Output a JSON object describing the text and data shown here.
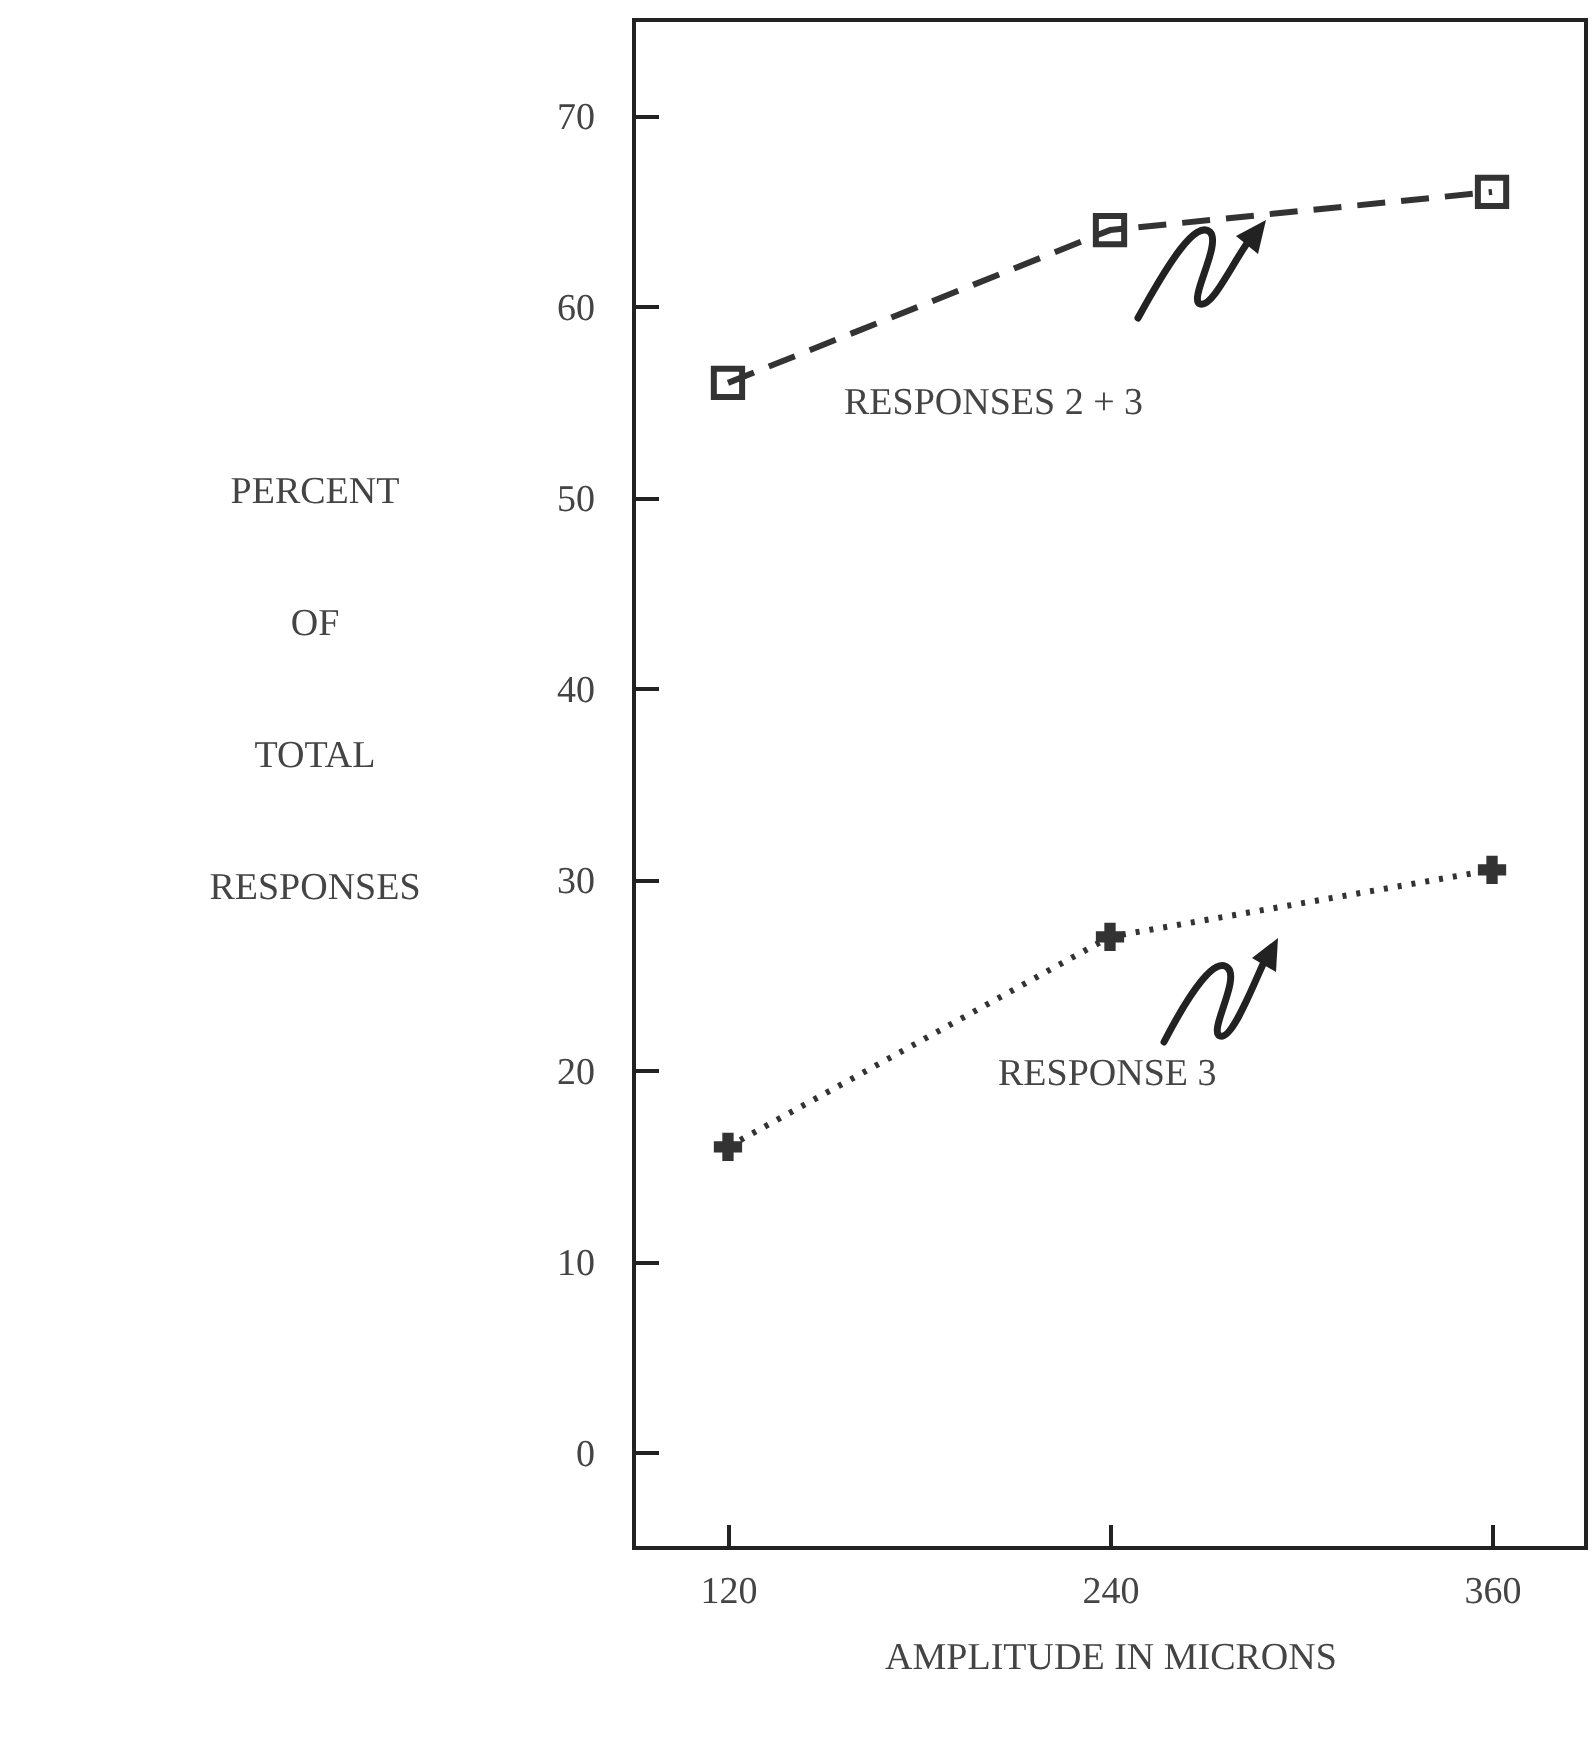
{
  "chart_data": {
    "type": "line",
    "categories": [
      "120",
      "240",
      "360"
    ],
    "xlabel": "AMPLITUDE IN MICRONS",
    "ylabel": "PERCENT OF TOTAL RESPONSES",
    "ylim": [
      -5,
      75
    ],
    "yticks": [
      0,
      10,
      20,
      30,
      40,
      50,
      60,
      70
    ],
    "grid": false,
    "series": [
      {
        "name": "RESPONSES 2 + 3",
        "color": "#333333",
        "marker": "square",
        "line_style": "dashed",
        "values": [
          56,
          64,
          66
        ]
      },
      {
        "name": "RESPONSE 3",
        "color": "#333333",
        "marker": "cross",
        "line_style": "dotted",
        "values": [
          16,
          27,
          30.5
        ]
      }
    ]
  }
}
